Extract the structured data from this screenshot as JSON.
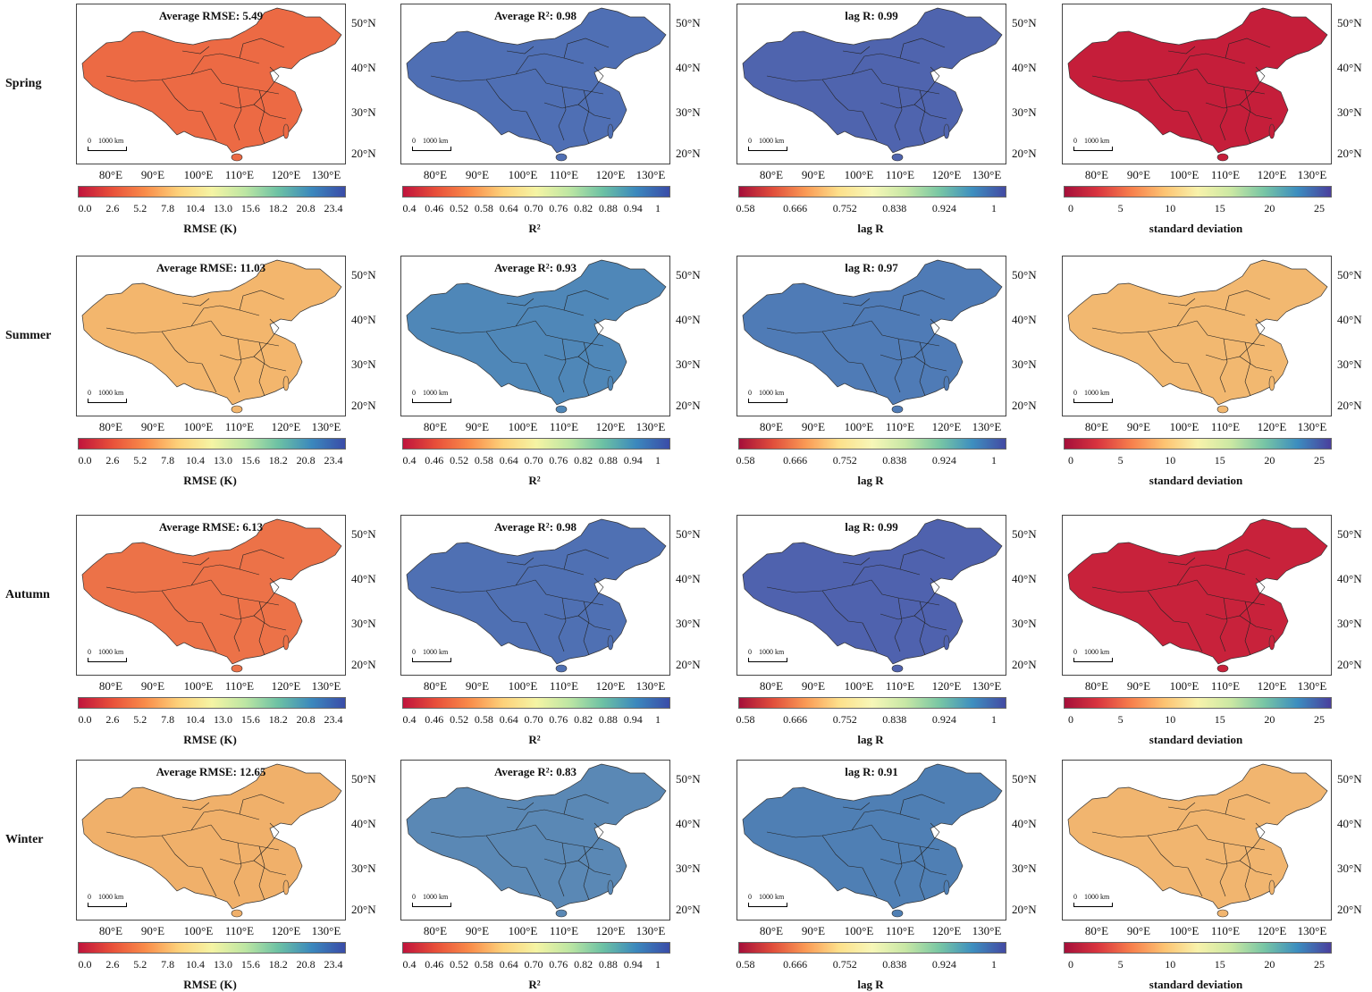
{
  "season_labels": [
    "Spring",
    "Summer",
    "Autumn",
    "Winter"
  ],
  "latitude_labels": [
    "50°N",
    "40°N",
    "30°N",
    "20°N"
  ],
  "longitude_labels": [
    "80°E",
    "90°E",
    "100°E",
    "110°E",
    "120°E",
    "130°E"
  ],
  "scale_bar": {
    "zero": "0",
    "label": "1000 km"
  },
  "columns": [
    {
      "metric": "rmse",
      "colorbar_ticks": [
        "0.0",
        "2.6",
        "5.2",
        "7.8",
        "10.4",
        "13.0",
        "15.6",
        "18.2",
        "20.8",
        "23.4"
      ],
      "colorbar_label": "RMSE (K)",
      "colormap": "Spectral"
    },
    {
      "metric": "r2",
      "colorbar_ticks": [
        "0.4",
        "0.46",
        "0.52",
        "0.58",
        "0.64",
        "0.70",
        "0.76",
        "0.82",
        "0.88",
        "0.94",
        "1"
      ],
      "colorbar_label": "R²",
      "colormap": "Spectral"
    },
    {
      "metric": "lag_r",
      "colorbar_ticks": [
        "0.58",
        "0.666",
        "0.752",
        "0.838",
        "0.924",
        "1"
      ],
      "colorbar_label": "lag R",
      "colormap": "Spectral"
    },
    {
      "metric": "std",
      "colorbar_ticks": [
        "0",
        "5",
        "10",
        "15",
        "20",
        "25"
      ],
      "colorbar_label": "standard deviation",
      "colormap": "Spectral"
    }
  ],
  "panels": [
    {
      "season": "Spring",
      "stats": [
        "Average RMSE: 5.49",
        "Average R²: 0.98",
        "lag R: 0.99",
        ""
      ],
      "fills": [
        "#ec6a44",
        "#4f6fb4",
        "#4f64ae",
        "#c51e3a"
      ]
    },
    {
      "season": "Summer",
      "stats": [
        "Average RMSE: 11.03",
        "Average R²: 0.93",
        "lag R: 0.97",
        ""
      ],
      "fills": [
        "#f3b66d",
        "#4f87b8",
        "#4f7bb6",
        "#f2b870"
      ]
    },
    {
      "season": "Autumn",
      "stats": [
        "Average RMSE: 6.13",
        "Average R²: 0.98",
        "lag R: 0.99",
        ""
      ],
      "fills": [
        "#ec7248",
        "#4f70b3",
        "#4f62ae",
        "#c8223b"
      ]
    },
    {
      "season": "Winter",
      "stats": [
        "Average RMSE: 12.65",
        "Average R²: 0.83",
        "lag R: 0.91",
        ""
      ],
      "fills": [
        "#f0b06a",
        "#5a88b5",
        "#4f7fb4",
        "#f1b56f"
      ]
    }
  ]
}
